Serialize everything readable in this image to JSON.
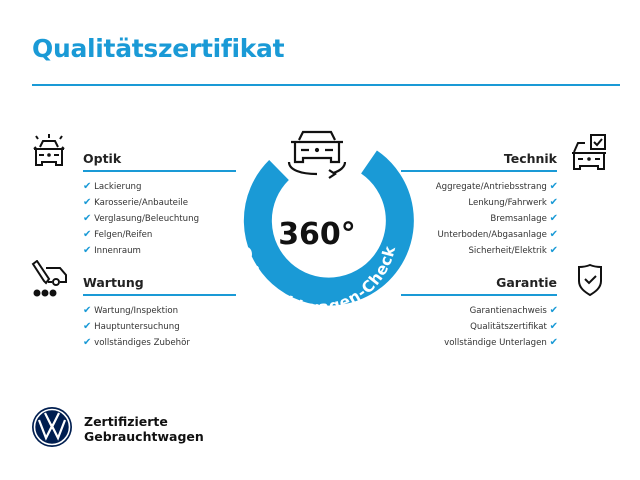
{
  "title": "Qualitätszertifikat",
  "accent": "#1a9ad6",
  "center": {
    "number": "360°",
    "ring_text": "Gebrauchtwagen-Check",
    "icon": "car-rotate-icon"
  },
  "sections": {
    "optik": {
      "title": "Optik",
      "icon": "car-lights-icon",
      "items": [
        "Lackierung",
        "Karosserie/Anbauteile",
        "Verglasung/Beleuchtung",
        "Felgen/Reifen",
        "Innenraum"
      ]
    },
    "wartung": {
      "title": "Wartung",
      "icon": "service-truck-icon",
      "items": [
        "Wartung/Inspektion",
        "Hauptuntersuchung",
        "vollständiges Zubehör"
      ]
    },
    "technik": {
      "title": "Technik",
      "icon": "car-checkbox-icon",
      "items": [
        "Aggregate/Antriebsstrang",
        "Lenkung/Fahrwerk",
        "Bremsanlage",
        "Unterboden/Abgasanlage",
        "Sicherheit/Elektrik"
      ]
    },
    "garantie": {
      "title": "Garantie",
      "icon": "shield-check-icon",
      "items": [
        "Garantienachweis",
        "Qualitätszertifikat",
        "vollständige Unterlagen"
      ]
    }
  },
  "check": "✔",
  "brand": {
    "line1": "Zertifizierte",
    "line2": "Gebrauchtwagen",
    "logo": "VW"
  }
}
